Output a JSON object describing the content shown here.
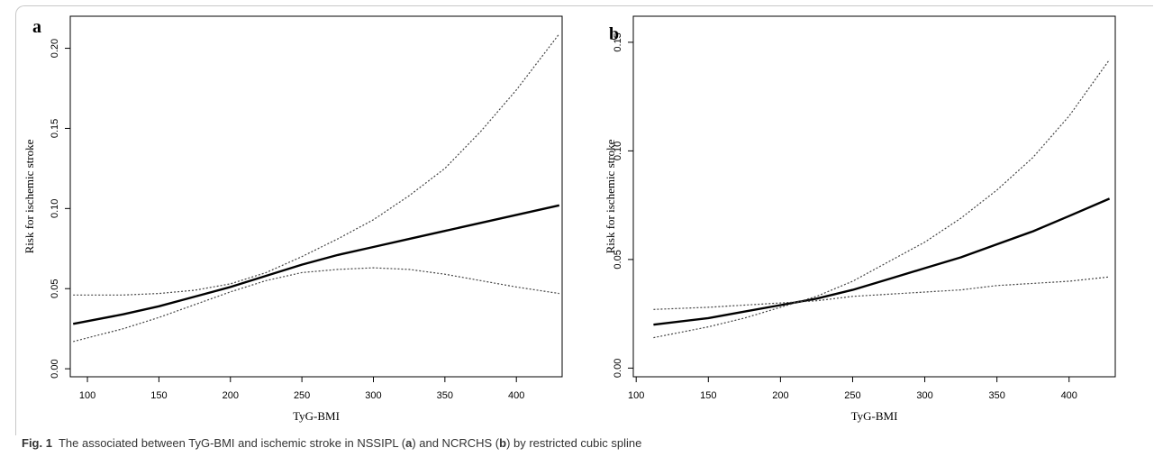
{
  "figure": {
    "caption_label": "Fig. 1",
    "caption_parts": [
      "The associated between TyG-BMI and ischemic stroke in NSSIPL (",
      "a",
      ") and NCRCHS (",
      "b",
      ") by restricted cubic spline"
    ]
  },
  "chart_data": [
    {
      "panel": "a",
      "type": "line",
      "xlabel": "TyG-BMI",
      "ylabel": "Risk for ischemic stroke",
      "xlim": [
        88,
        432
      ],
      "ylim": [
        -0.005,
        0.22
      ],
      "xticks": [
        100,
        150,
        200,
        250,
        300,
        350,
        400
      ],
      "yticks": [
        0.0,
        0.05,
        0.1,
        0.15,
        0.2
      ],
      "ytick_labels": [
        "0.00",
        "0.05",
        "0.10",
        "0.15",
        "0.20"
      ],
      "grid": false,
      "series": [
        {
          "style": "solid",
          "x": [
            90,
            125,
            150,
            175,
            200,
            225,
            250,
            275,
            300,
            325,
            350,
            375,
            400,
            430
          ],
          "y": [
            0.028,
            0.034,
            0.039,
            0.045,
            0.051,
            0.058,
            0.065,
            0.071,
            0.076,
            0.081,
            0.086,
            0.091,
            0.096,
            0.102
          ]
        },
        {
          "style": "dotted",
          "x": [
            90,
            125,
            150,
            175,
            200,
            225,
            250,
            275,
            300,
            325,
            350,
            375,
            400,
            430
          ],
          "y": [
            0.046,
            0.046,
            0.047,
            0.049,
            0.053,
            0.06,
            0.07,
            0.081,
            0.093,
            0.108,
            0.125,
            0.148,
            0.174,
            0.209
          ]
        },
        {
          "style": "dotted",
          "x": [
            90,
            125,
            150,
            175,
            200,
            225,
            250,
            275,
            300,
            325,
            350,
            375,
            400,
            430
          ],
          "y": [
            0.017,
            0.025,
            0.032,
            0.04,
            0.048,
            0.055,
            0.06,
            0.062,
            0.063,
            0.062,
            0.059,
            0.055,
            0.051,
            0.047
          ]
        }
      ]
    },
    {
      "panel": "b",
      "type": "line",
      "xlabel": "TyG-BMI",
      "ylabel": "Risk for ischemic stroke",
      "xlim": [
        98,
        432
      ],
      "ylim": [
        -0.004,
        0.162
      ],
      "xticks": [
        100,
        150,
        200,
        250,
        300,
        350,
        400
      ],
      "yticks": [
        0.0,
        0.05,
        0.1,
        0.15
      ],
      "ytick_labels": [
        "0.00",
        "0.05",
        "0.10",
        "0.15"
      ],
      "grid": false,
      "series": [
        {
          "style": "solid",
          "x": [
            112,
            150,
            175,
            200,
            225,
            250,
            275,
            300,
            325,
            350,
            375,
            400,
            428
          ],
          "y": [
            0.02,
            0.023,
            0.026,
            0.029,
            0.032,
            0.036,
            0.041,
            0.046,
            0.051,
            0.057,
            0.063,
            0.07,
            0.078
          ]
        },
        {
          "style": "dotted",
          "x": [
            112,
            150,
            175,
            200,
            225,
            250,
            275,
            300,
            325,
            350,
            375,
            400,
            428
          ],
          "y": [
            0.027,
            0.028,
            0.029,
            0.03,
            0.031,
            0.033,
            0.034,
            0.035,
            0.036,
            0.038,
            0.039,
            0.04,
            0.042
          ]
        },
        {
          "style": "dotted",
          "x": [
            112,
            150,
            175,
            200,
            225,
            250,
            275,
            300,
            325,
            350,
            375,
            400,
            428
          ],
          "y": [
            0.014,
            0.019,
            0.023,
            0.028,
            0.033,
            0.04,
            0.049,
            0.058,
            0.069,
            0.082,
            0.097,
            0.116,
            0.142
          ]
        }
      ]
    }
  ]
}
